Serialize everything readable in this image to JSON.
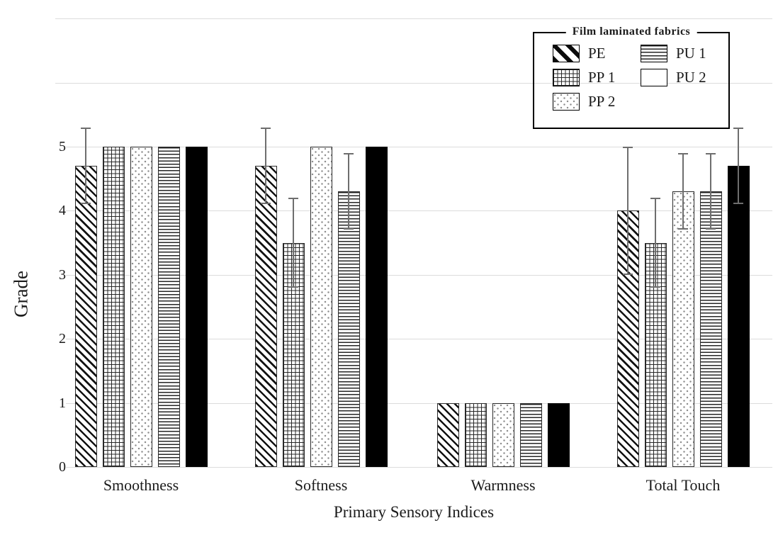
{
  "chart_data": {
    "type": "bar",
    "title": "",
    "xlabel": "Primary Sensory Indices",
    "ylabel": "Grade",
    "ylim": [
      0,
      7
    ],
    "yticks": [
      "0",
      "1",
      "2",
      "3",
      "4",
      "5"
    ],
    "grid_levels": [
      0,
      1,
      2,
      3,
      4,
      5,
      6,
      7
    ],
    "grid_on": true,
    "categories": [
      "Smoothness",
      "Softness",
      "Warmness",
      "Total Touch"
    ],
    "legend": {
      "title": "Film laminated fabrics",
      "position": "top-right",
      "columns": [
        [
          "PE",
          "PP 1",
          "PP 2"
        ],
        [
          "PU 1",
          "PU 2"
        ]
      ]
    },
    "series": [
      {
        "name": "PE",
        "pattern": "diagonal-stripes",
        "values": [
          4.7,
          4.7,
          1,
          4.0
        ],
        "errors": [
          0.6,
          0.6,
          null,
          1.0
        ]
      },
      {
        "name": "PP 1",
        "pattern": "grid",
        "values": [
          5.0,
          3.5,
          1,
          3.5
        ],
        "errors": [
          null,
          0.7,
          null,
          0.7
        ]
      },
      {
        "name": "PP 2",
        "pattern": "dots",
        "values": [
          5.0,
          5.0,
          1,
          4.3
        ],
        "errors": [
          null,
          null,
          null,
          0.6
        ]
      },
      {
        "name": "PU 1",
        "pattern": "horizontal-lines",
        "values": [
          5.0,
          4.3,
          1,
          4.3
        ],
        "errors": [
          null,
          0.6,
          null,
          0.6
        ]
      },
      {
        "name": "PU 2",
        "pattern": "solid-black",
        "values": [
          5.0,
          5.0,
          1,
          4.7
        ],
        "errors": [
          null,
          null,
          null,
          0.6
        ]
      }
    ],
    "colors": {
      "background": "#ffffff",
      "gridline": "#dcdcdc",
      "error_bar": "#6e6e6e",
      "bar_outline": "#2b2b2b",
      "ink": "#000000"
    }
  }
}
